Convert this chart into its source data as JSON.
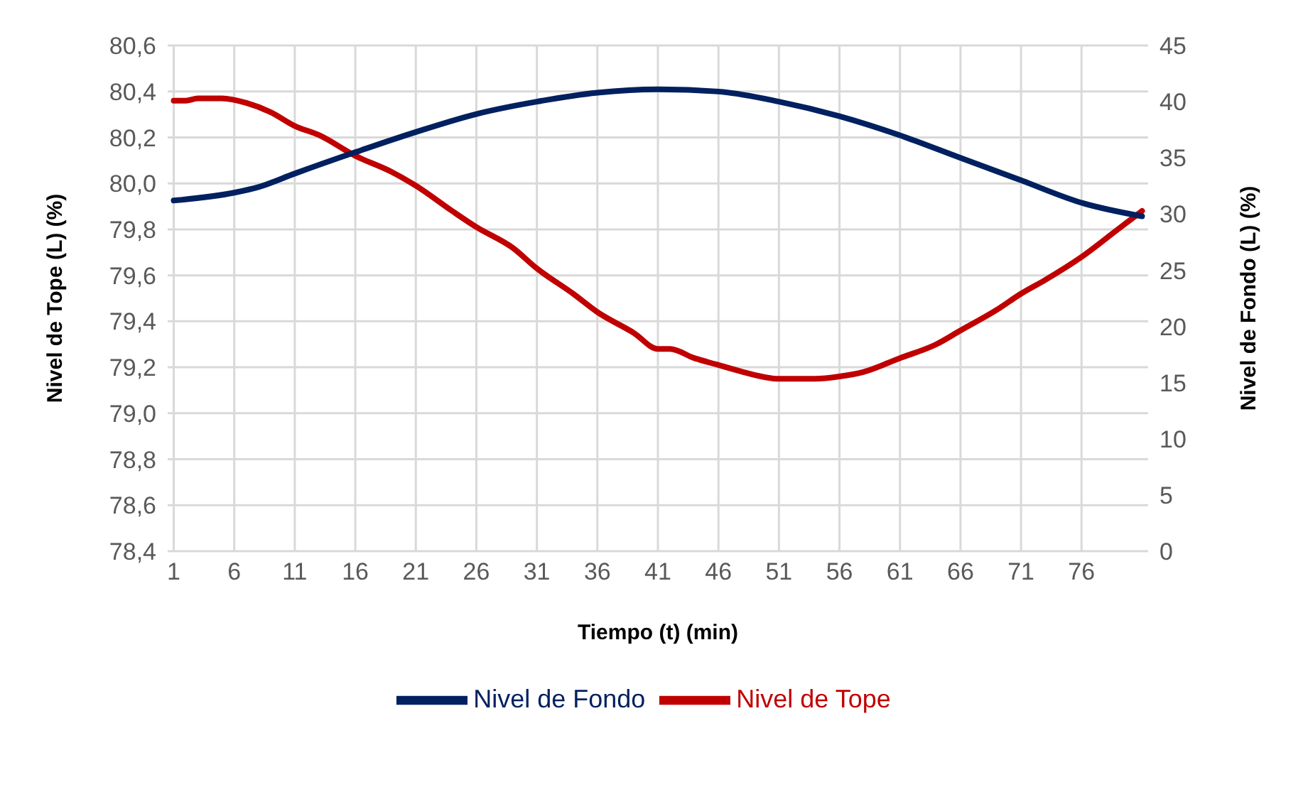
{
  "chart_data": {
    "type": "line",
    "xlabel": "Tiempo (t) (min)",
    "ylabel": "Nivel de Tope (L) (%)",
    "y2label": "Nivel de Fondo (L) (%)",
    "xlim": [
      0.5,
      81.5
    ],
    "xticks": [
      1,
      6,
      11,
      16,
      21,
      26,
      31,
      36,
      41,
      46,
      51,
      56,
      61,
      66,
      71,
      76
    ],
    "ylim": [
      78.4,
      80.6
    ],
    "yticks": [
      {
        "value": 78.4,
        "label": "78,4"
      },
      {
        "value": 78.6,
        "label": "78,6"
      },
      {
        "value": 78.8,
        "label": "78,8"
      },
      {
        "value": 79.0,
        "label": "79,0"
      },
      {
        "value": 79.2,
        "label": "79,2"
      },
      {
        "value": 79.4,
        "label": "79,4"
      },
      {
        "value": 79.6,
        "label": "79,6"
      },
      {
        "value": 79.8,
        "label": "79,8"
      },
      {
        "value": 80.0,
        "label": "80,0"
      },
      {
        "value": 80.2,
        "label": "80,2"
      },
      {
        "value": 80.4,
        "label": "80,4"
      },
      {
        "value": 80.6,
        "label": "80,6"
      }
    ],
    "y2lim": [
      0,
      45
    ],
    "y2ticks": [
      0,
      5,
      10,
      15,
      20,
      25,
      30,
      35,
      40,
      45
    ],
    "grid": true,
    "legend": "bottom",
    "marker": "none",
    "line_style": "solid",
    "series": [
      {
        "name": "Nivel de Tope",
        "color": "#c00000",
        "x": [
          1,
          2,
          3,
          5,
          7,
          9,
          11,
          13,
          16,
          19,
          21,
          24,
          26,
          29,
          31,
          34,
          36,
          39,
          41,
          42,
          44,
          46,
          48,
          51,
          54,
          56,
          58,
          61,
          64,
          66,
          69,
          71,
          73,
          76,
          79,
          81
        ],
        "values": [
          80.36,
          80.36,
          80.37,
          80.37,
          80.35,
          80.31,
          80.25,
          80.21,
          80.12,
          80.05,
          79.99,
          79.88,
          79.81,
          79.72,
          79.63,
          79.52,
          79.44,
          79.35,
          79.28,
          79.28,
          79.24,
          79.21,
          79.18,
          79.15,
          79.15,
          79.16,
          79.18,
          79.24,
          79.3,
          79.36,
          79.45,
          79.52,
          79.58,
          79.68,
          79.8,
          79.88
        ]
      },
      {
        "name": "Nivel de Fondo",
        "color": "#002060",
        "axis": "y2",
        "x": [
          1,
          6,
          8,
          11,
          16,
          21,
          26,
          31,
          36,
          41,
          46,
          51,
          56,
          61,
          66,
          71,
          76,
          81
        ],
        "values": [
          31.2,
          31.9,
          32.4,
          33.6,
          35.5,
          37.3,
          38.9,
          40.0,
          40.8,
          41.1,
          40.9,
          40.0,
          38.7,
          37.0,
          35.0,
          33.0,
          31.0,
          29.8
        ]
      }
    ]
  }
}
